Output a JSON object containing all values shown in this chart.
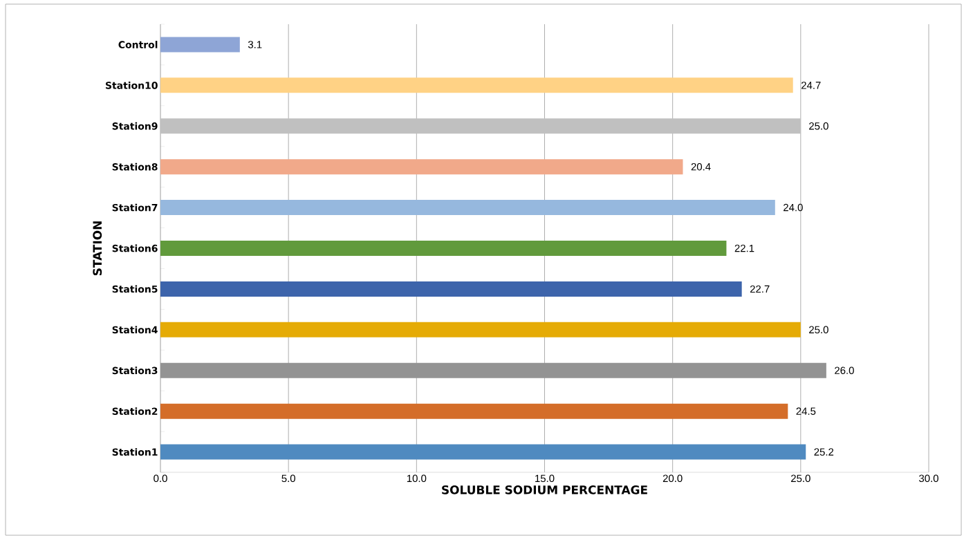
{
  "chart_data": {
    "type": "bar",
    "orientation": "horizontal",
    "categories": [
      "Control",
      "Station10",
      "Station9",
      "Station8",
      "Station7",
      "Station6",
      "Station5",
      "Station4",
      "Station3",
      "Station2",
      "Station1"
    ],
    "values": [
      3.1,
      24.7,
      25.0,
      20.4,
      24.0,
      22.1,
      22.7,
      25.0,
      26.0,
      24.5,
      25.2
    ],
    "value_labels": [
      "3.1",
      "24.7",
      "25.0",
      "20.4",
      "24.0",
      "22.1",
      "22.7",
      "25.0",
      "26.0",
      "24.5",
      "25.2"
    ],
    "colors": [
      "#8EA5D6",
      "#FFD285",
      "#C0C0C0",
      "#F1A98A",
      "#96B8DE",
      "#619A3C",
      "#3D64AB",
      "#E5AB06",
      "#939393",
      "#D46D29",
      "#4F8AC0"
    ],
    "xlim": [
      0,
      30
    ],
    "xticks": [
      {
        "value": 0,
        "label": "0.0"
      },
      {
        "value": 5,
        "label": "5.0"
      },
      {
        "value": 10,
        "label": "10.0"
      },
      {
        "value": 15,
        "label": "15.0"
      },
      {
        "value": 20,
        "label": "20.0"
      },
      {
        "value": 25,
        "label": "25.0"
      },
      {
        "value": 30,
        "label": "30.0"
      }
    ],
    "xlabel": "SOLUBLE SODIUM PERCENTAGE",
    "ylabel": "STATION",
    "grid": "x"
  }
}
